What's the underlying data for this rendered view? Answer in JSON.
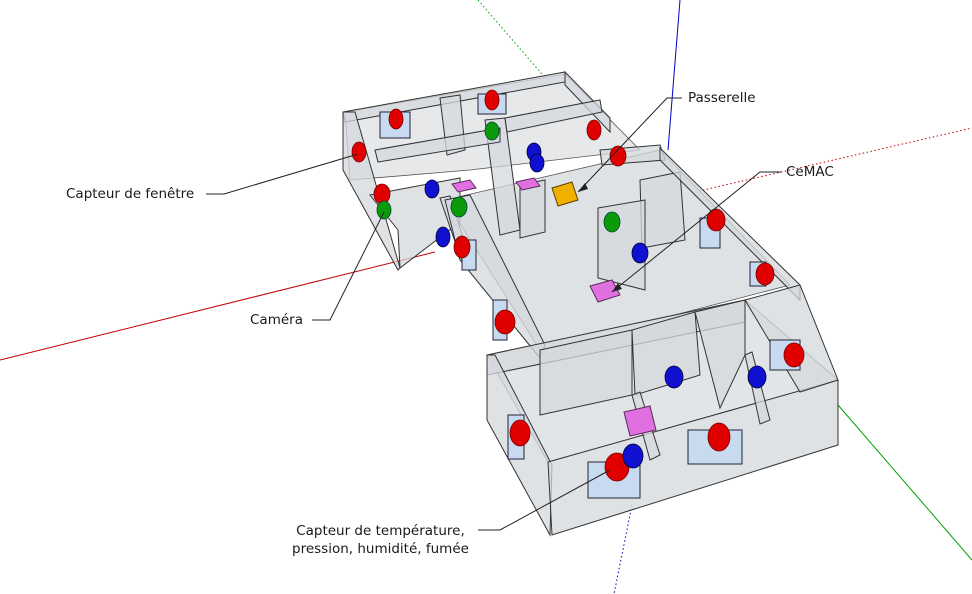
{
  "labels": {
    "window_sensor": "Capteur de fenêtre",
    "camera": "Caméra",
    "gateway": "Passerelle",
    "cemac": "CeMAC",
    "env_sensor_line1": "Capteur de température,",
    "env_sensor_line2": "pression, humidité, fumée"
  },
  "colors": {
    "axis_red": "#c00000",
    "axis_green": "#00a000",
    "axis_blue": "#0000c8",
    "sensor_red": "#e00000",
    "camera_green": "#0a9a0a",
    "sensor_blue": "#1010d0",
    "gateway": "#f0b000",
    "cemac": "#e070e0",
    "wall_fill": "#d8dce0",
    "floor_fill": "#e4e6e8"
  }
}
